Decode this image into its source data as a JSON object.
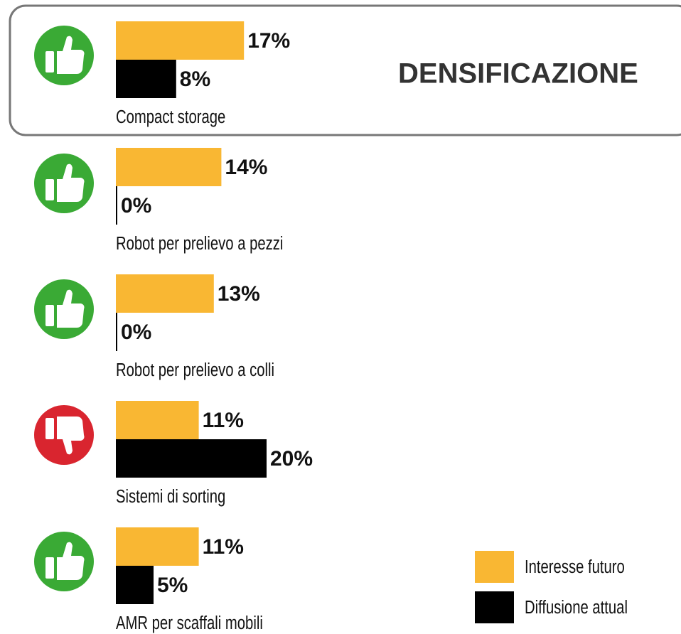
{
  "chart_data": {
    "type": "bar",
    "orientation": "horizontal",
    "annotation": "DENSIFICAZIONE",
    "categories": [
      "Compact storage",
      "Robot per prelievo a pezzi",
      "Robot per prelievo a colli",
      "Sistemi di sorting",
      "AMR per scaffali mobili"
    ],
    "series": [
      {
        "name": "Interesse futuro",
        "color": "#f9b733",
        "values": [
          17,
          14,
          13,
          11,
          11
        ],
        "value_labels": [
          "17%",
          "14%",
          "13%",
          "11%",
          "11%"
        ]
      },
      {
        "name": "Diffusione attual",
        "color": "#000000",
        "values": [
          8,
          0,
          0,
          20,
          5
        ],
        "value_labels": [
          "8%",
          "0%",
          "0%",
          "20%",
          "5%"
        ]
      }
    ]
  }
}
